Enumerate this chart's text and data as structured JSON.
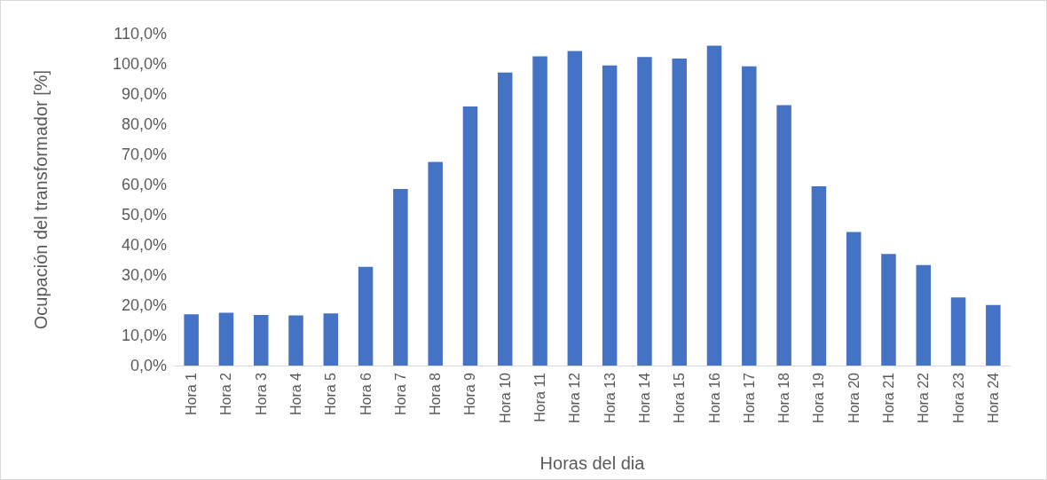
{
  "chart_data": {
    "type": "bar",
    "xlabel": "Horas del dia",
    "ylabel": "Ocupación del transformador [%]",
    "categories": [
      "Hora 1",
      "Hora 2",
      "Hora 3",
      "Hora 4",
      "Hora 5",
      "Hora 6",
      "Hora 7",
      "Hora 8",
      "Hora 9",
      "Hora 10",
      "Hora 11",
      "Hora 12",
      "Hora 13",
      "Hora 14",
      "Hora 15",
      "Hora 16",
      "Hora 17",
      "Hora 18",
      "Hora 19",
      "Hora 20",
      "Hora 21",
      "Hora 22",
      "Hora 23",
      "Hora 24"
    ],
    "values": [
      17.0,
      17.5,
      16.8,
      16.6,
      17.3,
      32.7,
      58.5,
      67.5,
      85.9,
      97.1,
      102.5,
      104.3,
      99.5,
      102.3,
      101.8,
      106.0,
      99.2,
      86.3,
      59.4,
      44.3,
      37.0,
      33.3,
      22.6,
      20.1
    ],
    "color": "#4472c4",
    "ylim": [
      0,
      110
    ],
    "yticks": [
      {
        "value": 0,
        "label": "0,0%"
      },
      {
        "value": 10,
        "label": "10,0%"
      },
      {
        "value": 20,
        "label": "20,0%"
      },
      {
        "value": 30,
        "label": "30,0%"
      },
      {
        "value": 40,
        "label": "40,0%"
      },
      {
        "value": 50,
        "label": "50,0%"
      },
      {
        "value": 60,
        "label": "60,0%"
      },
      {
        "value": 70,
        "label": "70,0%"
      },
      {
        "value": 80,
        "label": "80,0%"
      },
      {
        "value": 90,
        "label": "90,0%"
      },
      {
        "value": 100,
        "label": "100,0%"
      },
      {
        "value": 110,
        "label": "110,0%"
      }
    ],
    "grid": false
  }
}
